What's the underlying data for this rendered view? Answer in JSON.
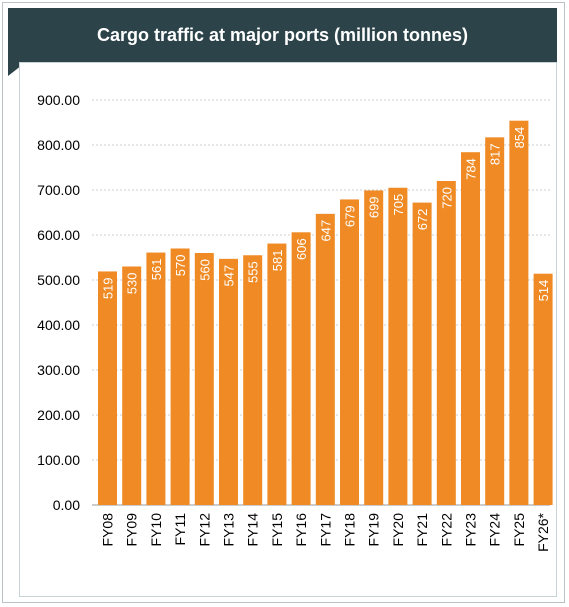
{
  "chart_data": {
    "type": "bar",
    "title": "Cargo traffic at major ports (million tonnes)",
    "categories": [
      "FY08",
      "FY09",
      "FY10",
      "FY11",
      "FY12",
      "FY13",
      "FY14",
      "FY15",
      "FY16",
      "FY17",
      "FY18",
      "FY19",
      "FY20",
      "FY21",
      "FY22",
      "FY23",
      "FY24",
      "FY25",
      "FY26*"
    ],
    "values": [
      519,
      530,
      561,
      570,
      560,
      547,
      555,
      581,
      606,
      647,
      679,
      699,
      705,
      672,
      720,
      784,
      817,
      854,
      514
    ],
    "value_labels": [
      "519",
      "530",
      "561",
      "570",
      "560",
      "547",
      "555",
      "581",
      "606",
      "647",
      "679",
      "699",
      "705",
      "672",
      "720",
      "784",
      "817",
      "854",
      "514"
    ],
    "y_ticks": [
      "0.00",
      "100.00",
      "200.00",
      "300.00",
      "400.00",
      "500.00",
      "600.00",
      "700.00",
      "800.00",
      "900.00"
    ],
    "ylim": [
      0,
      900
    ],
    "grid": true,
    "legend": "none",
    "colors": {
      "bar": "#ef8a24",
      "title_bg": "#2b4349",
      "grid": "#cfcfcf",
      "label": "#ffffff"
    }
  }
}
